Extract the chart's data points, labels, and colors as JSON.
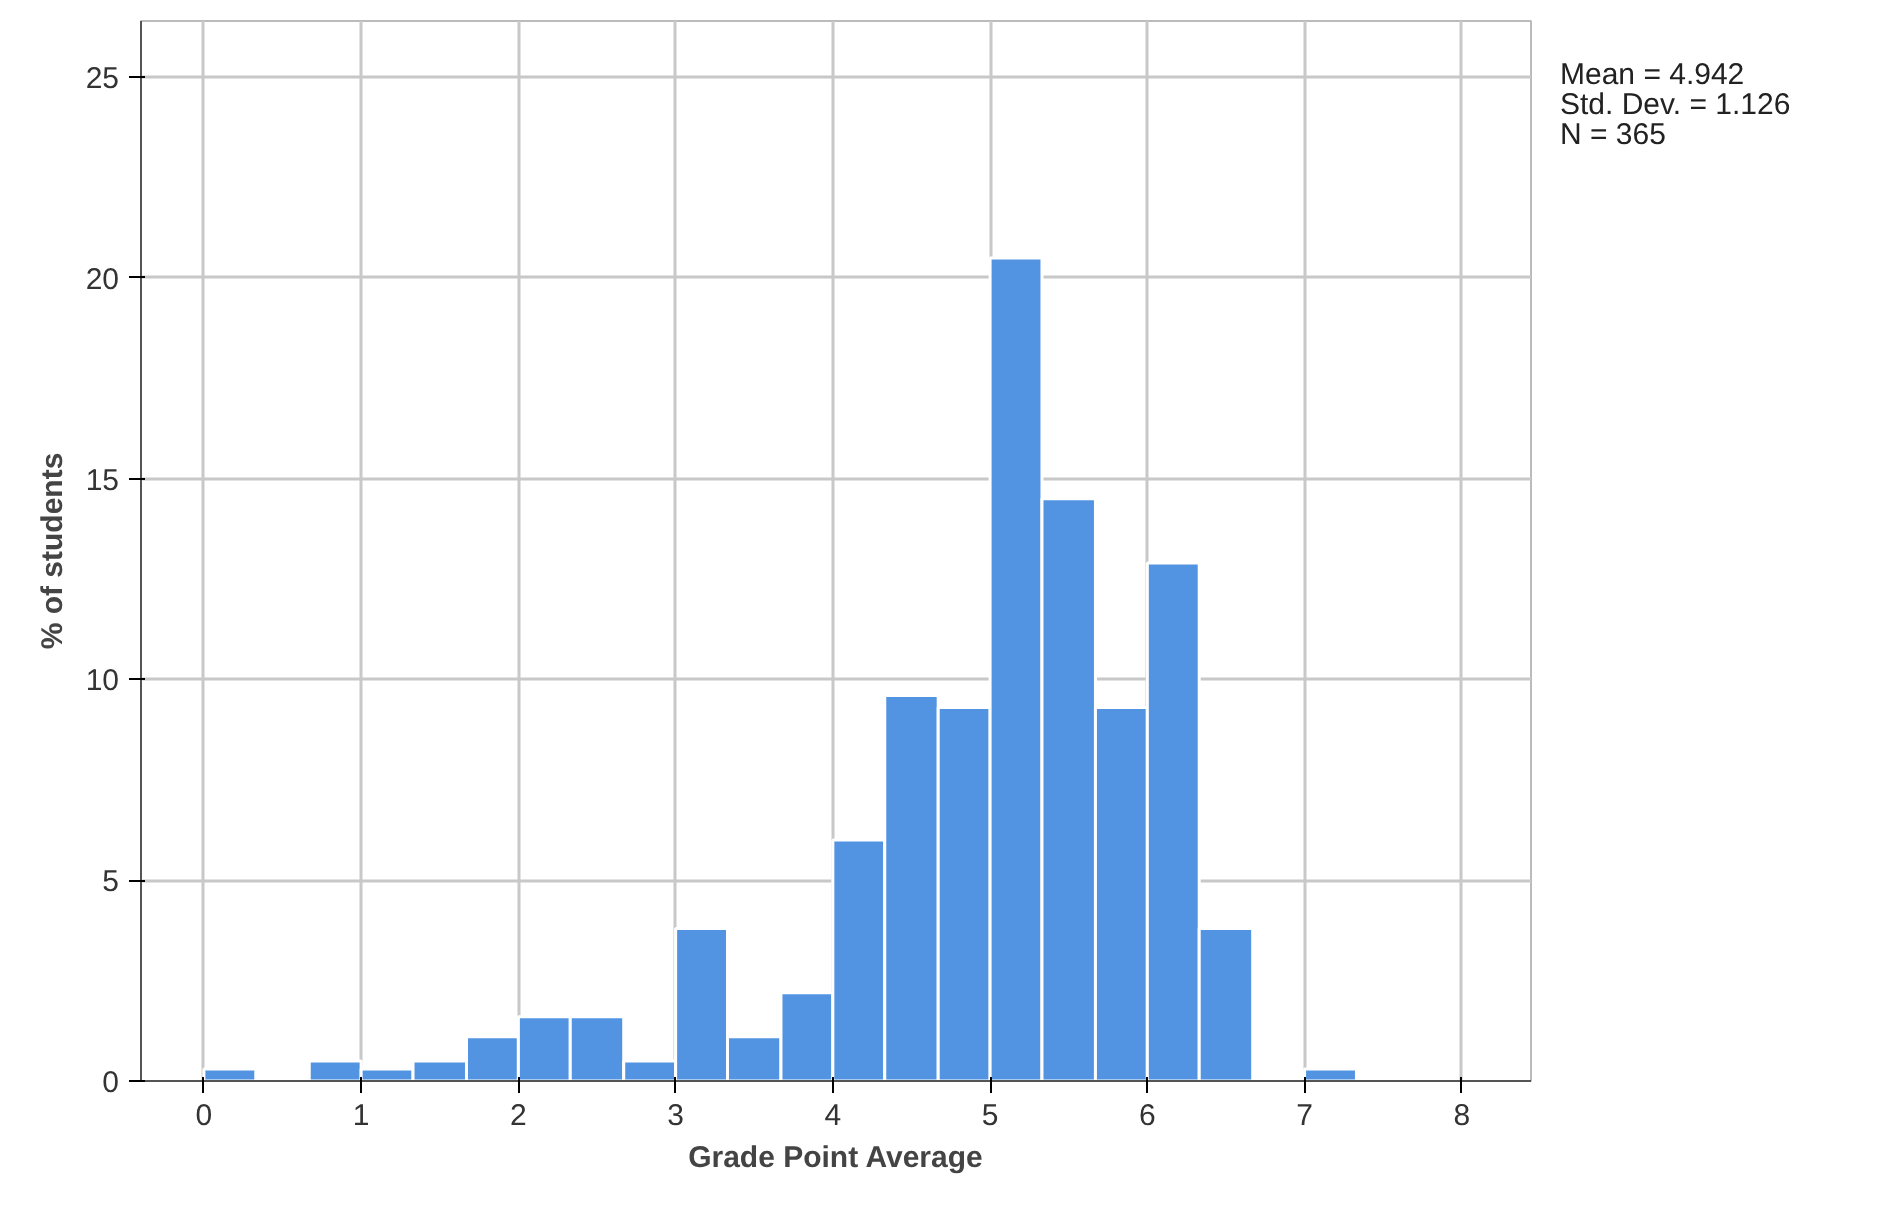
{
  "chart_data": {
    "type": "histogram",
    "xlabel": "Grade Point Average",
    "ylabel": "% of students",
    "bins": [
      0,
      0.33,
      0.67,
      1,
      1.33,
      1.67,
      2,
      2.33,
      2.67,
      3,
      3.33,
      3.67,
      4,
      4.33,
      4.67,
      5,
      5.33,
      5.67,
      6,
      6.33,
      6.67,
      7,
      7.33
    ],
    "values": [
      0.3,
      0,
      0.5,
      0.3,
      0.5,
      1.1,
      1.6,
      1.6,
      0.5,
      3.8,
      1.1,
      2.2,
      6.0,
      9.6,
      9.3,
      20.5,
      14.5,
      9.3,
      12.9,
      3.8,
      0,
      0.3
    ],
    "color": "#5294e2",
    "xlim": [
      -0.4,
      8.44
    ],
    "ylim": [
      0,
      26.4
    ],
    "xticks": [
      0,
      1,
      2,
      3,
      4,
      5,
      6,
      7,
      8
    ],
    "yticks": [
      0,
      5,
      10,
      15,
      20,
      25
    ],
    "grid": true,
    "annotations": [
      "Mean = 4.942\nStd. Dev. = 1.126\nN = 365"
    ]
  }
}
